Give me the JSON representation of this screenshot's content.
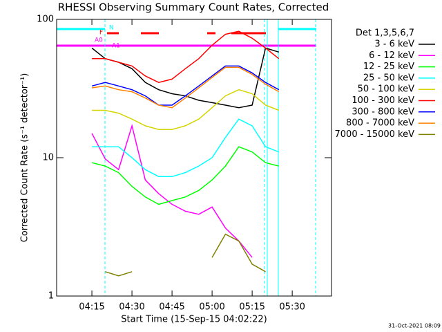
{
  "chart_data": {
    "type": "line",
    "title": "RHESSI Observing Summary Count Rates, Corrected",
    "x_label": "Start Time (15-Sep-15 04:02:22)",
    "y_label": "Corrected Count Rate (s⁻¹ detector⁻¹)",
    "legend_title": "Det 1,3,5,6,7",
    "timestamp": "31-Oct-2021 08:09",
    "annotations": [
      "N",
      "F",
      "A0",
      "A1"
    ],
    "log_y": true,
    "xlim": [
      241.8,
      344.7
    ],
    "xticks": [
      {
        "value": 255,
        "label": "04:15"
      },
      {
        "value": 270,
        "label": "04:30"
      },
      {
        "value": 285,
        "label": "04:45"
      },
      {
        "value": 300,
        "label": "05:00"
      },
      {
        "value": 315,
        "label": "05:15"
      },
      {
        "value": 330,
        "label": "05:30"
      }
    ],
    "ylim": [
      1,
      100
    ],
    "yticks": [
      1,
      10,
      100
    ],
    "x": [
      255,
      260,
      265,
      270,
      275,
      280,
      285,
      290,
      295,
      300,
      305,
      310,
      315,
      320,
      325
    ],
    "series": [
      {
        "name": "3 - 6 keV",
        "color": "#000000",
        "values": [
          62,
          52,
          49,
          44,
          35,
          31,
          29,
          28,
          26,
          25,
          24,
          23,
          24,
          62,
          58
        ]
      },
      {
        "name": "6 - 12 keV",
        "color": "#ff00ff",
        "values": [
          15,
          9.8,
          8.2,
          17,
          6.9,
          5.5,
          4.6,
          4.1,
          3.9,
          4.4,
          3.1,
          2.5,
          1.9,
          null,
          null
        ]
      },
      {
        "name": "12 - 25 keV",
        "color": "#00ff00",
        "values": [
          9.2,
          8.7,
          7.8,
          6.2,
          5.2,
          4.6,
          4.9,
          5.2,
          5.8,
          6.9,
          8.7,
          12,
          11,
          9.2,
          8.7
        ]
      },
      {
        "name": "25 - 50 keV",
        "color": "#00ffff",
        "values": [
          12,
          12,
          12,
          10,
          8.2,
          7.3,
          7.3,
          7.8,
          8.7,
          10,
          14,
          19,
          17,
          12,
          11
        ]
      },
      {
        "name": "50 - 100 keV",
        "color": "#d4d400",
        "values": [
          22,
          22,
          21,
          19,
          17,
          16,
          16,
          17,
          19,
          23,
          28,
          31,
          29,
          24,
          22
        ]
      },
      {
        "name": "100 - 300 keV",
        "color": "#ff0000",
        "values": [
          52,
          52,
          49,
          46,
          39,
          35,
          37,
          44,
          52,
          65,
          78,
          82,
          73,
          62,
          52
        ]
      },
      {
        "name": "300 - 800 keV",
        "color": "#0000ff",
        "values": [
          33,
          35,
          33,
          31,
          28,
          24,
          24,
          28,
          33,
          39,
          46,
          46,
          41,
          35,
          31
        ]
      },
      {
        "name": "800 - 7000 keV",
        "color": "#ff8000",
        "values": [
          32,
          33,
          31,
          30,
          27,
          24,
          23,
          27,
          32,
          38,
          45,
          45,
          40,
          34,
          30
        ]
      },
      {
        "name": "7000 - 15000 keV",
        "color": "#808000",
        "values": [
          null,
          1.5,
          1.4,
          1.5,
          null,
          null,
          null,
          null,
          null,
          1.9,
          2.8,
          2.5,
          1.7,
          1.5,
          null
        ]
      }
    ]
  }
}
